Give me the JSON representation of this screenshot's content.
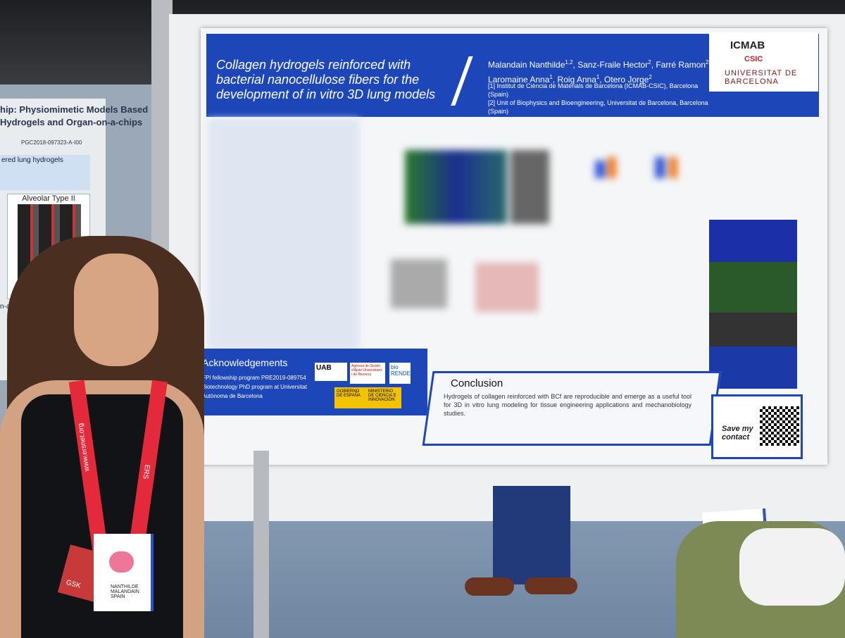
{
  "poster": {
    "title": "Collagen hydrogels reinforced with bacterial nanocellulose fibers for the development of in vitro 3D lung models",
    "authors": [
      [
        {
          "text": "Malandain Nanthilde",
          "sup": "1,2"
        },
        {
          "text": ", Sanz-Fraile Hector",
          "sup": "2"
        },
        {
          "text": ", Farré Ramon",
          "sup": "2"
        },
        {
          "text": ","
        }
      ],
      [
        {
          "text": "Laromaine Anna",
          "sup": "1"
        },
        {
          "text": ", Roig Anna",
          "sup": "1"
        },
        {
          "text": ", Otero Jorge",
          "sup": "2"
        }
      ]
    ],
    "affiliations": [
      "[1] Institut de Ciència de Materials de Barcelona (ICMAB-CSIC), Barcelona (Spain)",
      "[2] Unit of Biophysics and Bioengineering, Universitat de Barcelona, Barcelona (Spain)"
    ],
    "logos": [
      "ICMAB",
      "CSIC",
      "UNIVERSITAT DE BARCELONA"
    ],
    "acknowledgements": {
      "title": "Acknowledgements",
      "items": [
        "FPI fellowship program PRE2019-089754",
        "Biotechnology PhD program at Universitat Autònoma de Barcelona"
      ],
      "logos": [
        "UAB",
        "Agència de Gestió d'Ajuts Universitaris i de Recerca",
        "bio RENDER",
        "GOBIERNO DE ESPAÑA",
        "MINISTERIO DE CIENCIA E INNOVACIÓN"
      ]
    },
    "conclusion": {
      "title": "Conclusion",
      "text": "Hydrogels of collagen reinforced with BCf are reproducible and emerge as a useful tool for 3D in vitro lung modeling for tissue engineering applications and mechanobiology studies."
    },
    "contact": "Save my contact"
  },
  "left_poster": {
    "lines": [
      "hip: Physiomimetic Models Based",
      "Hydrogels and Organ-on-a-chips",
      "PGC2018-097323-A-I00"
    ],
    "sections": [
      "ered lung hydrogels",
      "Alveolar Type II",
      "n-a-chip"
    ]
  },
  "badge": {
    "lanyard": "www.ersnet.org",
    "ers": "ERS",
    "name": "NANTHILDE MALANDAIN SPAIN",
    "sponsor": "GSK"
  }
}
